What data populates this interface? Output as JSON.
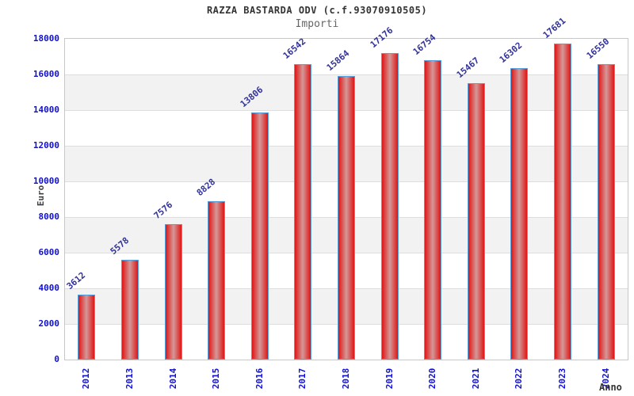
{
  "chart_data": {
    "type": "bar",
    "title": "RAZZA BASTARDA ODV (c.f.93070910505)",
    "subtitle": "Importi",
    "xlabel": "Anno",
    "ylabel": "Euro",
    "categories": [
      "2012",
      "2013",
      "2014",
      "2015",
      "2016",
      "2017",
      "2018",
      "2019",
      "2020",
      "2021",
      "2022",
      "2023",
      "2024"
    ],
    "values": [
      3612,
      5578,
      7576,
      8828,
      13806,
      16542,
      15864,
      17176,
      16754,
      15467,
      16302,
      17681,
      16550
    ],
    "ylim": [
      0,
      18000
    ],
    "ytick_step": 2000,
    "yticks": [
      0,
      2000,
      4000,
      6000,
      8000,
      10000,
      12000,
      14000,
      16000,
      18000
    ],
    "grid": true,
    "legend_position": "none",
    "band_pattern": "alternating horizontal bands per 2000 units",
    "colors": {
      "tick_label": "#1010d0",
      "value_label": "#333399",
      "bar_border": "#55a0dd",
      "bar_edge": "#e01515",
      "bar_mid": "#d49898",
      "band_alt": "#f2f2f2",
      "band_main": "#ffffff",
      "grid_line": "#dedede",
      "plot_border": "#c8c8c8",
      "title_color": "#333333",
      "subtitle_color": "#666666",
      "axis_title_color": "#404040"
    }
  }
}
